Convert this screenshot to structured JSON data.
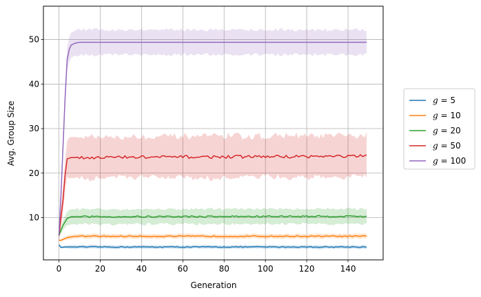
{
  "chart_data": {
    "type": "line",
    "title": "",
    "xlabel": "Generation",
    "ylabel": "Avg. Group Size",
    "xlim": [
      -7.5,
      157
    ],
    "ylim": [
      0.5,
      57.5
    ],
    "xticks": [
      0,
      20,
      40,
      60,
      80,
      100,
      120,
      140
    ],
    "yticks": [
      10,
      20,
      30,
      40,
      50
    ],
    "grid": true,
    "legend_position": "right",
    "series": [
      {
        "name": "g = 5",
        "legend": {
          "prefix": "g",
          "value": "= 5"
        },
        "color": "#1f77b4",
        "keyframes": [
          [
            0,
            3.9
          ],
          [
            1,
            3.3
          ],
          [
            3,
            3.4
          ],
          [
            150,
            3.4
          ]
        ],
        "band": 0.4,
        "noise": 0.1
      },
      {
        "name": "g = 10",
        "legend": {
          "prefix": "g",
          "value": "= 10"
        },
        "color": "#ff7f0e",
        "keyframes": [
          [
            0,
            4.9
          ],
          [
            1,
            4.9
          ],
          [
            4,
            5.5
          ],
          [
            8,
            5.8
          ],
          [
            150,
            5.8
          ]
        ],
        "band": 0.5,
        "noise": 0.12
      },
      {
        "name": "g = 20",
        "legend": {
          "prefix": "g",
          "value": "= 20"
        },
        "color": "#2ca02c",
        "keyframes": [
          [
            0,
            6.0
          ],
          [
            2,
            8.3
          ],
          [
            4,
            9.8
          ],
          [
            6,
            10.2
          ],
          [
            150,
            10.3
          ]
        ],
        "band": 1.7,
        "noise": 0.18
      },
      {
        "name": "g = 50",
        "legend": {
          "prefix": "g",
          "value": "= 50"
        },
        "color": "#d62728",
        "keyframes": [
          [
            0,
            6.0
          ],
          [
            2,
            14.0
          ],
          [
            3,
            19.5
          ],
          [
            4,
            23.2
          ],
          [
            6,
            23.5
          ],
          [
            150,
            23.8
          ]
        ],
        "band": 4.6,
        "noise": 0.35
      },
      {
        "name": "g = 100",
        "legend": {
          "prefix": "g",
          "value": "= 100"
        },
        "color": "#9467bd",
        "keyframes": [
          [
            0,
            6.0
          ],
          [
            1,
            15.0
          ],
          [
            2,
            26.0
          ],
          [
            3,
            37.0
          ],
          [
            4,
            45.5
          ],
          [
            5,
            47.8
          ],
          [
            6,
            48.8
          ],
          [
            8,
            49.2
          ],
          [
            10,
            49.4
          ],
          [
            150,
            49.4
          ]
        ],
        "band": 2.8,
        "noise": 0.0
      }
    ]
  }
}
